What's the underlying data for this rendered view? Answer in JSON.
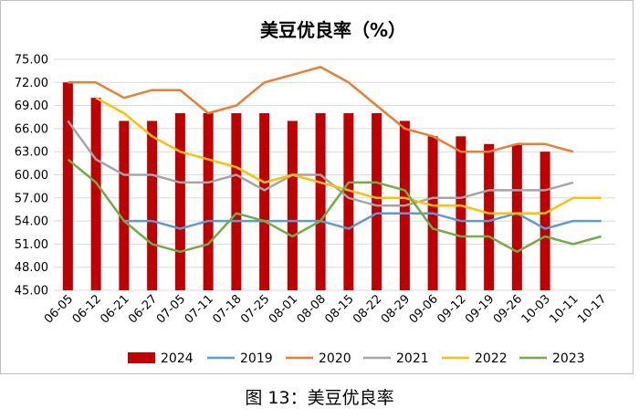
{
  "caption": "图 13：美豆优良率",
  "colors": {
    "2024": "#C00000",
    "2019": "#5B9BD5",
    "2020": "#ED7D31",
    "2021": "#A5A5A5",
    "2022": "#FFC000",
    "2023": "#70AD47",
    "grid": "#D9D9D9",
    "border": "#BFBFBF"
  },
  "chart_data": {
    "type": "bar",
    "title": "美豆优良率（%）",
    "xlabel": "",
    "ylabel": "",
    "ylim": [
      45,
      75
    ],
    "yticks": [
      "75.00",
      "72.00",
      "69.00",
      "66.00",
      "63.00",
      "60.00",
      "57.00",
      "54.00",
      "51.00",
      "48.00",
      "45.00"
    ],
    "grid": true,
    "legend_position": "bottom",
    "categories": [
      "06-05",
      "06-12",
      "06-21",
      "06-27",
      "07-05",
      "07-11",
      "07-18",
      "07-25",
      "08-01",
      "08-08",
      "08-15",
      "08-22",
      "08-29",
      "09-06",
      "09-12",
      "09-19",
      "09-26",
      "10-03",
      "10-11",
      "10-17"
    ],
    "series": [
      {
        "name": "2024",
        "kind": "bar",
        "values": [
          72,
          70,
          67,
          67,
          68,
          68,
          68,
          68,
          67,
          68,
          68,
          68,
          67,
          65,
          65,
          64,
          64,
          63,
          null,
          null
        ]
      },
      {
        "name": "2019",
        "kind": "line",
        "values": [
          null,
          null,
          54,
          54,
          53,
          54,
          54,
          54,
          54,
          54,
          53,
          55,
          55,
          55,
          54,
          54,
          55,
          53,
          54,
          54
        ]
      },
      {
        "name": "2020",
        "kind": "line",
        "values": [
          72,
          72,
          70,
          71,
          71,
          68,
          69,
          72,
          73,
          74,
          72,
          69,
          66,
          65,
          63,
          63,
          64,
          64,
          63,
          null
        ]
      },
      {
        "name": "2021",
        "kind": "line",
        "values": [
          67,
          62,
          60,
          60,
          59,
          59,
          60,
          58,
          60,
          60,
          57,
          56,
          56,
          57,
          57,
          58,
          58,
          58,
          59,
          null
        ]
      },
      {
        "name": "2022",
        "kind": "line",
        "values": [
          null,
          70,
          68,
          65,
          63,
          62,
          61,
          59,
          60,
          59,
          58,
          57,
          57,
          56,
          56,
          55,
          55,
          55,
          57,
          57
        ]
      },
      {
        "name": "2023",
        "kind": "line",
        "values": [
          62,
          59,
          54,
          51,
          50,
          51,
          55,
          54,
          52,
          54,
          59,
          59,
          58,
          53,
          52,
          52,
          50,
          52,
          51,
          52
        ]
      }
    ]
  }
}
